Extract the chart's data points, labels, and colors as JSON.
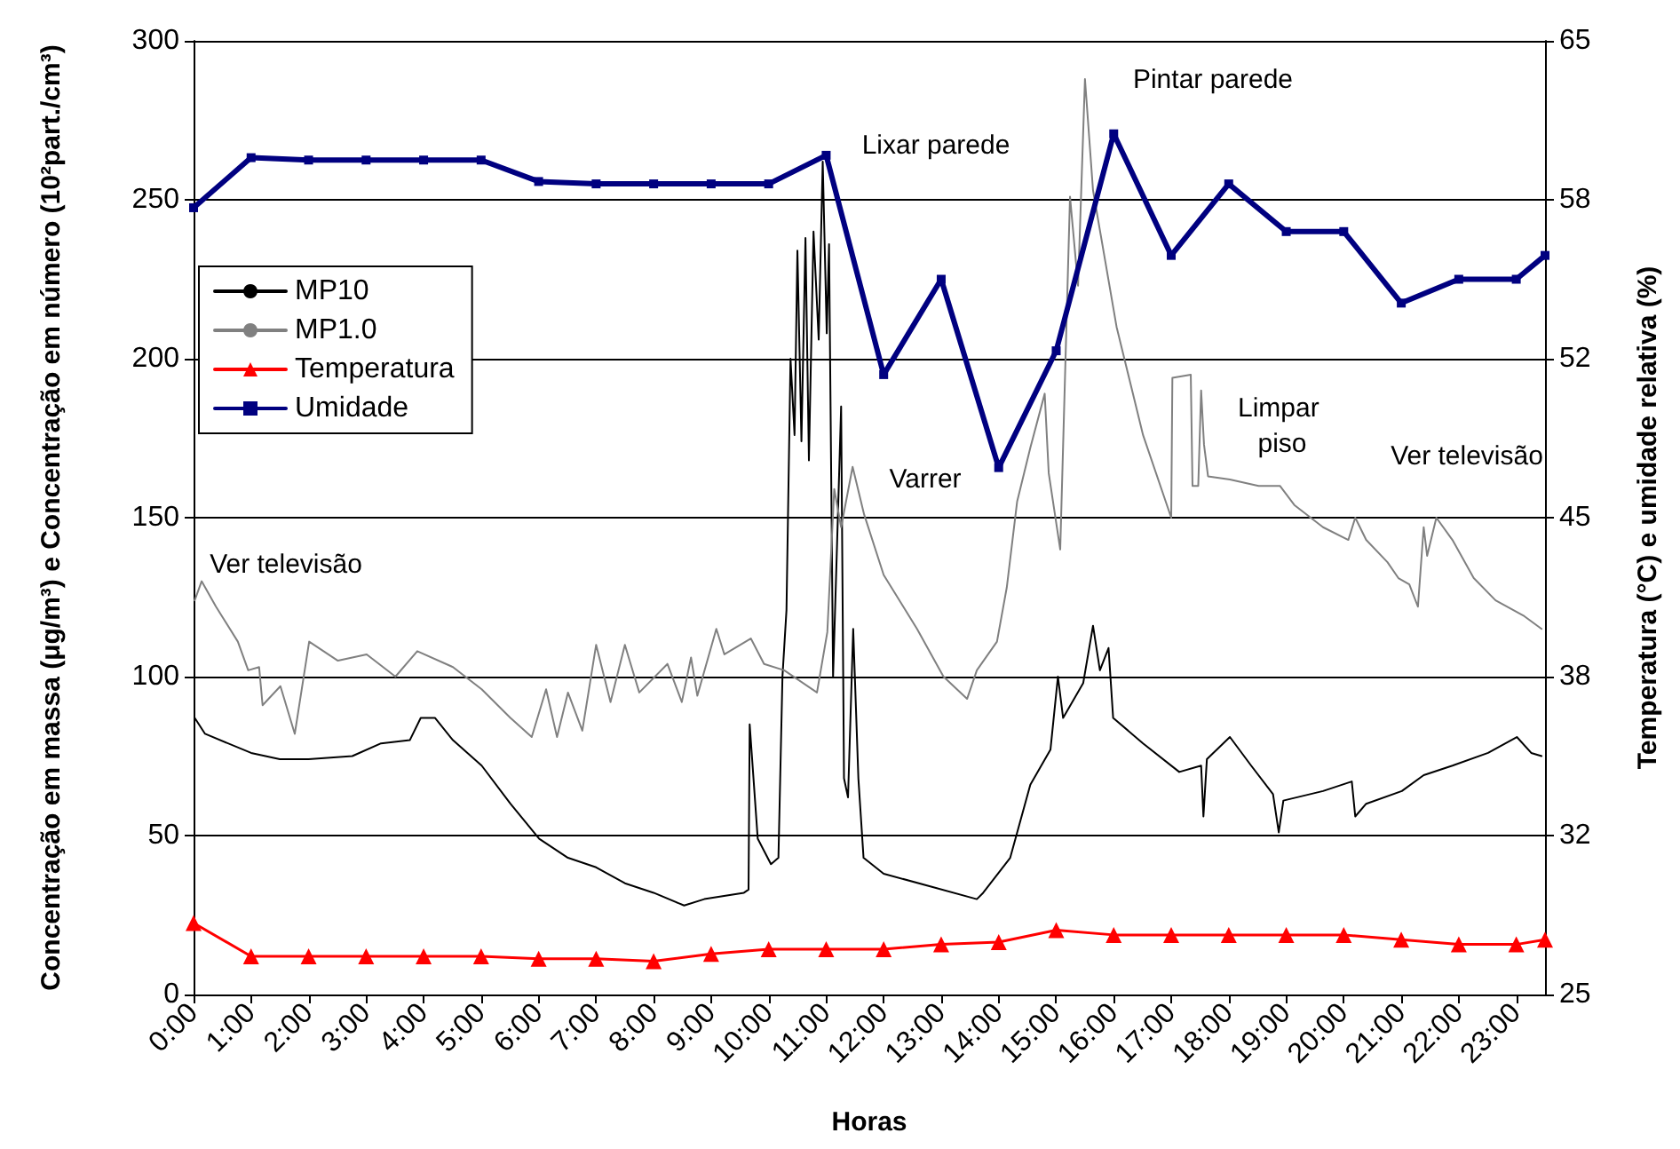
{
  "chart_data": {
    "type": "line",
    "xlabel": "Horas",
    "ylabel": "Concentração em massa (μg/m³) e Concentração em número (10²part./cm³)",
    "y2label": "Temperatura (°C) e umidade relativa (%)",
    "x": [
      0,
      1,
      2,
      3,
      4,
      5,
      6,
      7,
      8,
      9,
      10,
      11,
      12,
      13,
      14,
      15,
      16,
      17,
      18,
      19,
      20,
      21,
      22,
      23,
      23.5
    ],
    "xlim": [
      0,
      23.5
    ],
    "xticks": [
      {
        "value": 0,
        "label": "0:00"
      },
      {
        "value": 1,
        "label": "1:00"
      },
      {
        "value": 2,
        "label": "2:00"
      },
      {
        "value": 3,
        "label": "3:00"
      },
      {
        "value": 4,
        "label": "4:00"
      },
      {
        "value": 5,
        "label": "5:00"
      },
      {
        "value": 6,
        "label": "6:00"
      },
      {
        "value": 7,
        "label": "7:00"
      },
      {
        "value": 8,
        "label": "8:00"
      },
      {
        "value": 9,
        "label": "9:00"
      },
      {
        "value": 10,
        "label": "10:00"
      },
      {
        "value": 11,
        "label": "11:00"
      },
      {
        "value": 12,
        "label": "12:00"
      },
      {
        "value": 13,
        "label": "13:00"
      },
      {
        "value": 14,
        "label": "14:00"
      },
      {
        "value": 15,
        "label": "15:00"
      },
      {
        "value": 16,
        "label": "16:00"
      },
      {
        "value": 17,
        "label": "17:00"
      },
      {
        "value": 18,
        "label": "18:00"
      },
      {
        "value": 19,
        "label": "19:00"
      },
      {
        "value": 20,
        "label": "20:00"
      },
      {
        "value": 21,
        "label": "21:00"
      },
      {
        "value": 22,
        "label": "22:00"
      },
      {
        "value": 23,
        "label": "23:00"
      }
    ],
    "ylim": [
      0,
      300
    ],
    "yticks": [
      0,
      50,
      100,
      150,
      200,
      250,
      300
    ],
    "y2lim": [
      25,
      65
    ],
    "y2ticks": [
      25,
      {
        "value": 31.667,
        "label": "32"
      },
      {
        "value": 38.333,
        "label": "38"
      },
      45,
      {
        "value": 51.667,
        "label": "52"
      },
      {
        "value": 58.333,
        "label": "58"
      },
      65
    ],
    "grid": "y",
    "legend": "left",
    "series": [
      {
        "name": "MP10",
        "color": "#000000",
        "marker": "none",
        "x": [
          0.02,
          0.2,
          1.0,
          1.5,
          2.0,
          2.76,
          3.26,
          3.76,
          3.95,
          4.2,
          4.51,
          5.01,
          5.51,
          6.01,
          6.51,
          7.0,
          7.5,
          8.0,
          8.53,
          8.88,
          9.57,
          9.65,
          9.67,
          9.81,
          10.04,
          10.17,
          10.24,
          10.31,
          10.38,
          10.45,
          10.5,
          10.57,
          10.64,
          10.7,
          10.78,
          10.87,
          10.94,
          11.01,
          11.05,
          11.12,
          11.19,
          11.26,
          11.31,
          11.38,
          11.47,
          11.56,
          11.65,
          12.0,
          12.81,
          13.62,
          13.73,
          14.2,
          14.55,
          14.9,
          15.03,
          15.12,
          15.47,
          15.64,
          15.76,
          15.91,
          15.99,
          16.51,
          17.14,
          17.52,
          17.56,
          17.62,
          18.02,
          18.39,
          18.77,
          18.87,
          18.95,
          19.64,
          20.14,
          20.2,
          20.39,
          21.01,
          21.39,
          21.89,
          22.51,
          23.01,
          23.26,
          23.44
        ],
        "values": [
          87,
          82,
          76,
          74,
          74,
          75,
          79,
          80,
          87,
          87,
          80,
          72,
          60,
          49,
          43,
          40,
          35,
          32,
          28,
          30,
          32,
          33,
          85,
          49,
          41,
          43,
          100,
          121,
          200,
          176,
          234,
          174,
          238,
          168,
          240,
          206,
          262,
          208,
          236,
          100,
          142,
          185,
          68,
          62,
          115,
          68,
          43,
          38,
          34,
          30,
          32,
          43,
          66,
          77,
          100,
          87,
          98,
          116,
          102,
          109,
          87,
          79,
          70,
          72,
          56,
          74,
          81,
          72,
          63,
          51,
          61,
          64,
          67,
          56,
          60,
          64,
          69,
          72,
          76,
          81,
          76,
          75
        ]
      },
      {
        "name": "MP1.0",
        "color": "#808080",
        "marker": "none",
        "x": [
          0.02,
          0.14,
          0.39,
          0.77,
          0.95,
          1.14,
          1.2,
          1.51,
          1.76,
          2.01,
          2.51,
          3.01,
          3.51,
          3.89,
          4.51,
          5.01,
          5.51,
          5.88,
          6.13,
          6.32,
          6.51,
          6.76,
          7.0,
          7.25,
          7.5,
          7.75,
          8.24,
          8.49,
          8.65,
          8.76,
          9.09,
          9.23,
          9.69,
          9.92,
          10.27,
          10.84,
          11.02,
          11.14,
          11.26,
          11.46,
          11.66,
          12.0,
          12.58,
          13.04,
          13.45,
          13.62,
          13.97,
          14.14,
          14.32,
          14.55,
          14.8,
          14.87,
          15.07,
          15.24,
          15.38,
          15.5,
          15.64,
          16.05,
          16.51,
          17.0,
          17.02,
          17.34,
          17.37,
          17.47,
          17.52,
          17.57,
          17.64,
          18.02,
          18.52,
          18.89,
          19.14,
          19.64,
          20.08,
          20.2,
          20.39,
          20.76,
          20.95,
          21.14,
          21.29,
          21.39,
          21.45,
          21.61,
          21.89,
          22.26,
          22.64,
          23.14,
          23.44
        ],
        "values": [
          124,
          130,
          122,
          111,
          102,
          103,
          91,
          97,
          82,
          111,
          105,
          107,
          100,
          108,
          103,
          96,
          87,
          81,
          96,
          81,
          95,
          83,
          110,
          92,
          110,
          95,
          104,
          92,
          106,
          94,
          115,
          107,
          112,
          104,
          102,
          95,
          114,
          159,
          147,
          166,
          151,
          132,
          115,
          100,
          93,
          102,
          111,
          128,
          155,
          172,
          189,
          164,
          140,
          251,
          223,
          288,
          253,
          210,
          176,
          150,
          194,
          195,
          160,
          160,
          190,
          173,
          163,
          162,
          160,
          160,
          154,
          147,
          143,
          150,
          143,
          136,
          131,
          129,
          122,
          147,
          138,
          150,
          143,
          131,
          124,
          119,
          115
        ]
      },
      {
        "name": "Temperatura",
        "color": "#ff0000",
        "marker": "triangle",
        "axis": "y2",
        "values": [
          28.0,
          26.6,
          26.6,
          26.6,
          26.6,
          26.6,
          26.5,
          26.5,
          26.4,
          26.7,
          26.9,
          26.9,
          26.9,
          27.1,
          27.2,
          27.7,
          27.5,
          27.5,
          27.5,
          27.5,
          27.5,
          27.3,
          27.1,
          27.1,
          27.3
        ]
      },
      {
        "name": "Umidade",
        "color": "#000080",
        "marker": "square",
        "axis": "y2",
        "values": [
          58.0,
          60.1,
          60.0,
          60.0,
          60.0,
          60.0,
          59.1,
          59.0,
          59.0,
          59.0,
          59.0,
          60.2,
          51.0,
          55.0,
          47.1,
          52.0,
          61.1,
          56.0,
          59.0,
          57.0,
          57.0,
          54.0,
          55.0,
          55.0,
          56.0
        ]
      }
    ],
    "annotations": [
      "Ver televisão",
      "Lixar parede",
      "Varrer",
      "Pintar parede",
      "Limpar piso",
      "Ver televisão"
    ]
  }
}
